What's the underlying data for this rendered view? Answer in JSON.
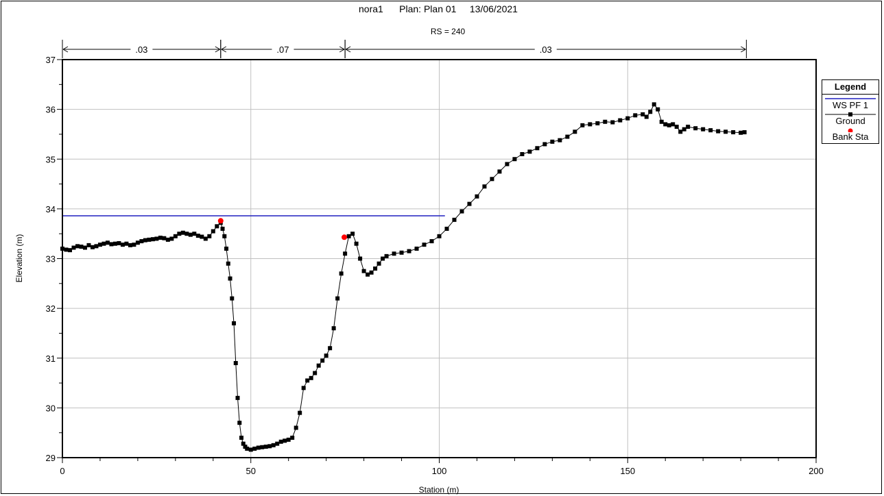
{
  "header": {
    "title": "nora1      Plan: Plan 01     13/06/2021",
    "subtitle": "RS = 240"
  },
  "manning": [
    {
      "label": ".03",
      "from": 0,
      "to": 42
    },
    {
      "label": ".07",
      "from": 42,
      "to": 75
    },
    {
      "label": ".03",
      "from": 75,
      "to": 181.5
    }
  ],
  "legend": {
    "title": "Legend",
    "items": [
      {
        "label": "WS PF 1",
        "color": "#1f1fbf",
        "kind": "line"
      },
      {
        "label": "Ground",
        "color": "#000000",
        "kind": "line-marker"
      },
      {
        "label": "Bank Sta",
        "color": "#ff0000",
        "kind": "dot"
      }
    ]
  },
  "chart_data": {
    "type": "line",
    "title": "",
    "xlabel": "Station (m)",
    "ylabel": "Elevation (m)",
    "xlim": [
      0,
      200
    ],
    "ylim": [
      29,
      37
    ],
    "xticks": [
      0,
      50,
      100,
      150,
      200
    ],
    "yticks": [
      29,
      30,
      31,
      32,
      33,
      34,
      35,
      36,
      37
    ],
    "grid": true,
    "legend_position": "right",
    "series": [
      {
        "name": "WS PF 1",
        "x": [
          0,
          101.5
        ],
        "y": [
          33.86,
          33.86
        ]
      },
      {
        "name": "Ground",
        "x": [
          0,
          1,
          2,
          3,
          4,
          5,
          6,
          7,
          8,
          9,
          10,
          11,
          12,
          13,
          14,
          15,
          16,
          17,
          18,
          19,
          20,
          21,
          22,
          23,
          24,
          25,
          26,
          27,
          28,
          29,
          30,
          31,
          32,
          33,
          34,
          35,
          36,
          37,
          38,
          39,
          40,
          41,
          42,
          42.5,
          43,
          43.5,
          44,
          44.5,
          45,
          45.5,
          46,
          46.5,
          47,
          47.5,
          48,
          48.5,
          49,
          50,
          51,
          52,
          53,
          54,
          55,
          56,
          57,
          58,
          59,
          60,
          61,
          62,
          63,
          64,
          65,
          66,
          67,
          68,
          69,
          70,
          71,
          72,
          73,
          74,
          75,
          76,
          77,
          78,
          79,
          80,
          81,
          82,
          83,
          84,
          85,
          86,
          88,
          90,
          92,
          94,
          96,
          98,
          100,
          102,
          104,
          106,
          108,
          110,
          112,
          114,
          116,
          118,
          120,
          122,
          124,
          126,
          128,
          130,
          132,
          134,
          136,
          138,
          140,
          142,
          144,
          146,
          148,
          150,
          152,
          154,
          155,
          156,
          157,
          158,
          159,
          160,
          161,
          162,
          163,
          164,
          165,
          166,
          168,
          170,
          172,
          174,
          176,
          178,
          180,
          181
        ],
        "y": [
          33.2,
          33.18,
          33.17,
          33.22,
          33.25,
          33.24,
          33.22,
          33.27,
          33.23,
          33.25,
          33.28,
          33.3,
          33.32,
          33.29,
          33.3,
          33.31,
          33.28,
          33.3,
          33.27,
          33.28,
          33.32,
          33.35,
          33.37,
          33.38,
          33.39,
          33.4,
          33.42,
          33.41,
          33.38,
          33.4,
          33.45,
          33.5,
          33.52,
          33.5,
          33.48,
          33.5,
          33.46,
          33.44,
          33.4,
          33.45,
          33.55,
          33.65,
          33.72,
          33.6,
          33.45,
          33.2,
          32.9,
          32.6,
          32.2,
          31.7,
          30.9,
          30.2,
          29.7,
          29.4,
          29.28,
          29.22,
          29.18,
          29.16,
          29.18,
          29.2,
          29.21,
          29.22,
          29.23,
          29.25,
          29.28,
          29.32,
          29.34,
          29.36,
          29.4,
          29.6,
          29.9,
          30.4,
          30.55,
          30.6,
          30.7,
          30.85,
          30.95,
          31.05,
          31.2,
          31.6,
          32.2,
          32.7,
          33.1,
          33.45,
          33.5,
          33.3,
          33.0,
          32.75,
          32.68,
          32.72,
          32.8,
          32.9,
          33.0,
          33.05,
          33.1,
          33.12,
          33.15,
          33.2,
          33.28,
          33.35,
          33.45,
          33.6,
          33.78,
          33.95,
          34.1,
          34.25,
          34.45,
          34.6,
          34.75,
          34.9,
          35.0,
          35.1,
          35.15,
          35.22,
          35.3,
          35.35,
          35.38,
          35.45,
          35.55,
          35.68,
          35.7,
          35.72,
          35.75,
          35.74,
          35.78,
          35.82,
          35.88,
          35.9,
          35.85,
          35.95,
          36.1,
          36.0,
          35.75,
          35.7,
          35.68,
          35.7,
          35.65,
          35.55,
          35.6,
          35.65,
          35.62,
          35.6,
          35.58,
          35.56,
          35.55,
          35.54,
          35.53,
          35.54
        ]
      },
      {
        "name": "Bank Sta",
        "x": [
          42,
          74.8
        ],
        "y": [
          33.76,
          33.43
        ]
      }
    ]
  }
}
